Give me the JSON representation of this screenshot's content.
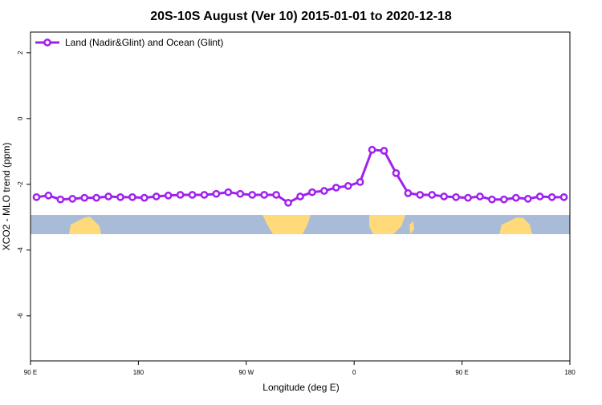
{
  "chart_data": {
    "type": "line",
    "title": "20S-10S August (Ver 10)   2015-01-01 to 2020-12-18",
    "x_label": "Longitude (deg E)",
    "y_label": "XCO2 - MLO trend (ppm)",
    "xlim": [
      90,
      540
    ],
    "xticks": [
      {
        "value": 90,
        "label": "90 E"
      },
      {
        "value": 180,
        "label": "180"
      },
      {
        "value": 270,
        "label": "90 W"
      },
      {
        "value": 360,
        "label": "0"
      },
      {
        "value": 450,
        "label": "90 E"
      },
      {
        "value": 540,
        "label": "180"
      }
    ],
    "ylim": [
      -7.37,
      2.63
    ],
    "yticks": [
      2,
      0,
      -2,
      -4,
      -6
    ],
    "legend_position": "top-left",
    "x": [
      95,
      105,
      115,
      125,
      135,
      145,
      155,
      165,
      175,
      185,
      195,
      205,
      215,
      225,
      235,
      245,
      255,
      265,
      275,
      285,
      295,
      305,
      315,
      325,
      335,
      345,
      355,
      365,
      375,
      385,
      395,
      405,
      415,
      425,
      435,
      445,
      455,
      465,
      475,
      485,
      495,
      505,
      515,
      525,
      535
    ],
    "series": [
      {
        "name": "Land (Nadir&Glint) and Ocean (Glint)",
        "color": "#a020f0",
        "values": [
          -2.39,
          -2.34,
          -2.46,
          -2.44,
          -2.41,
          -2.41,
          -2.37,
          -2.39,
          -2.39,
          -2.41,
          -2.37,
          -2.34,
          -2.32,
          -2.32,
          -2.32,
          -2.29,
          -2.24,
          -2.29,
          -2.32,
          -2.32,
          -2.32,
          -2.56,
          -2.37,
          -2.24,
          -2.2,
          -2.1,
          -2.05,
          -1.93,
          -0.95,
          -0.98,
          -1.66,
          -2.27,
          -2.32,
          -2.32,
          -2.37,
          -2.39,
          -2.41,
          -2.37,
          -2.46,
          -2.46,
          -2.41,
          -2.44,
          -2.37,
          -2.39,
          -2.39
        ]
      }
    ]
  }
}
